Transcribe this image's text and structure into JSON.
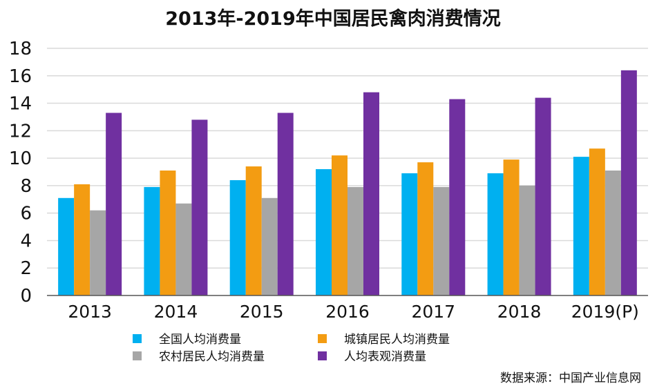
{
  "chart_data": {
    "type": "bar",
    "title": "2013年-2019年中国居民禽肉消费情况",
    "categories": [
      "2013",
      "2014",
      "2015",
      "2016",
      "2017",
      "2018",
      "2019(P)"
    ],
    "ylim": [
      0,
      18
    ],
    "yticks": [
      0,
      2,
      4,
      6,
      8,
      10,
      12,
      14,
      16,
      18
    ],
    "grid": true,
    "legend_position": "bottom",
    "series": [
      {
        "name": "全国人均消费量",
        "color": "#00b0f0",
        "values": [
          7.1,
          7.9,
          8.4,
          9.2,
          8.9,
          8.9,
          10.1
        ]
      },
      {
        "name": "城镇居民人均消费量",
        "color": "#f39c12",
        "values": [
          8.1,
          9.1,
          9.4,
          10.2,
          9.7,
          9.9,
          10.7
        ]
      },
      {
        "name": "农村居民人均消费量",
        "color": "#a6a6a6",
        "values": [
          6.2,
          6.7,
          7.1,
          7.9,
          7.9,
          8.0,
          9.1
        ]
      },
      {
        "name": "人均表观消费量",
        "color": "#7030a0",
        "values": [
          13.3,
          12.8,
          13.3,
          14.8,
          14.3,
          14.4,
          16.4
        ]
      }
    ]
  },
  "source_note": "数据来源：中国产业信息网"
}
